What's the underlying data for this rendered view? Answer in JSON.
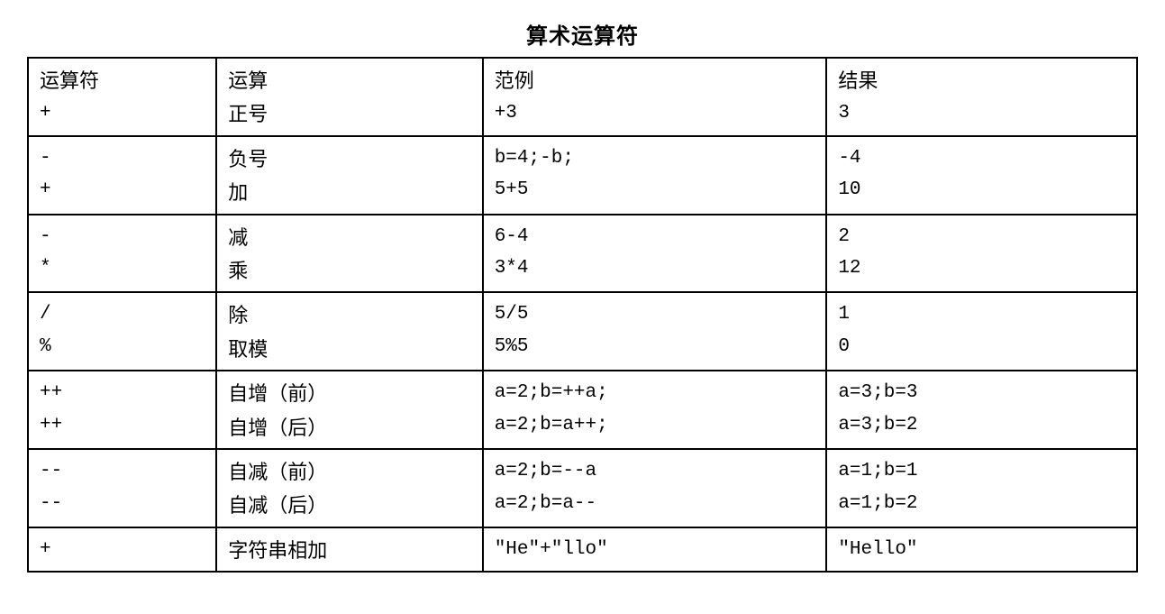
{
  "title": "算术运算符",
  "colwidths": [
    "17%",
    "24%",
    "31%",
    "28%"
  ],
  "groups": [
    {
      "rows": [
        {
          "op": "运算符",
          "name": "运算",
          "ex": "范例",
          "res": "结果",
          "mono": false
        },
        {
          "op": "+",
          "name": "正号",
          "ex": "+3",
          "res": "3",
          "mono": true
        }
      ]
    },
    {
      "rows": [
        {
          "op": "-",
          "name": "负号",
          "ex": "b=4;-b;",
          "res": "-4",
          "mono": true
        },
        {
          "op": "+",
          "name": "加",
          "ex": "5+5",
          "res": "10",
          "mono": true
        }
      ]
    },
    {
      "rows": [
        {
          "op": "-",
          "name": "减",
          "ex": "6-4",
          "res": "2",
          "mono": true
        },
        {
          "op": "*",
          "name": "乘",
          "ex": "3*4",
          "res": "12",
          "mono": true
        }
      ]
    },
    {
      "rows": [
        {
          "op": "/",
          "name": "除",
          "ex": "5/5",
          "res": "1",
          "mono": true
        },
        {
          "op": "%",
          "name": "取模",
          "ex": "5%5",
          "res": "0",
          "mono": true
        }
      ]
    },
    {
      "rows": [
        {
          "op": "++",
          "name": "自增（前）",
          "ex": "a=2;b=++a;",
          "res": "a=3;b=3",
          "mono": true
        },
        {
          "op": "++",
          "name": "自增（后）",
          "ex": "a=2;b=a++;",
          "res": "a=3;b=2",
          "mono": true
        }
      ]
    },
    {
      "rows": [
        {
          "op": "--",
          "name": "自减（前）",
          "ex": "a=2;b=--a",
          "res": "a=1;b=1",
          "mono": true
        },
        {
          "op": "--",
          "name": "自减（后）",
          "ex": "a=2;b=a--",
          "res": "a=1;b=2",
          "mono": true
        }
      ]
    },
    {
      "rows": [
        {
          "op": "+",
          "name": "字符串相加",
          "ex": "\"He\"+\"llo\"",
          "res": "\"Hello\"",
          "mono": true
        }
      ]
    }
  ]
}
